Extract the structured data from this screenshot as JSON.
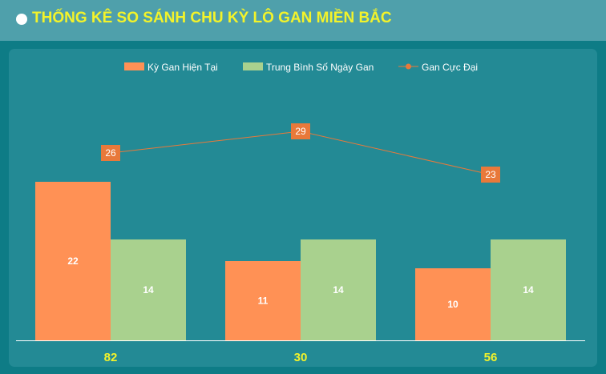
{
  "header": {
    "title": "THỐNG KÊ SO SÁNH CHU KỲ LÔ GAN MIỀN BẮC"
  },
  "colors": {
    "bar_current": "#ff9155",
    "bar_average": "#a9d18e",
    "line_max": "#e8793a",
    "xtick": "#f3f32a"
  },
  "chart_data": {
    "type": "bar",
    "categories": [
      "82",
      "30",
      "56"
    ],
    "series": [
      {
        "name": "Kỳ Gan Hiện Tại",
        "type": "bar",
        "values": [
          22,
          11,
          10
        ]
      },
      {
        "name": "Trung Bình Số Ngày Gan",
        "type": "bar",
        "values": [
          14,
          14,
          14
        ]
      },
      {
        "name": "Gan Cực Đại",
        "type": "line",
        "values": [
          26,
          29,
          23
        ]
      }
    ],
    "legend": "top-center",
    "grid": false
  }
}
